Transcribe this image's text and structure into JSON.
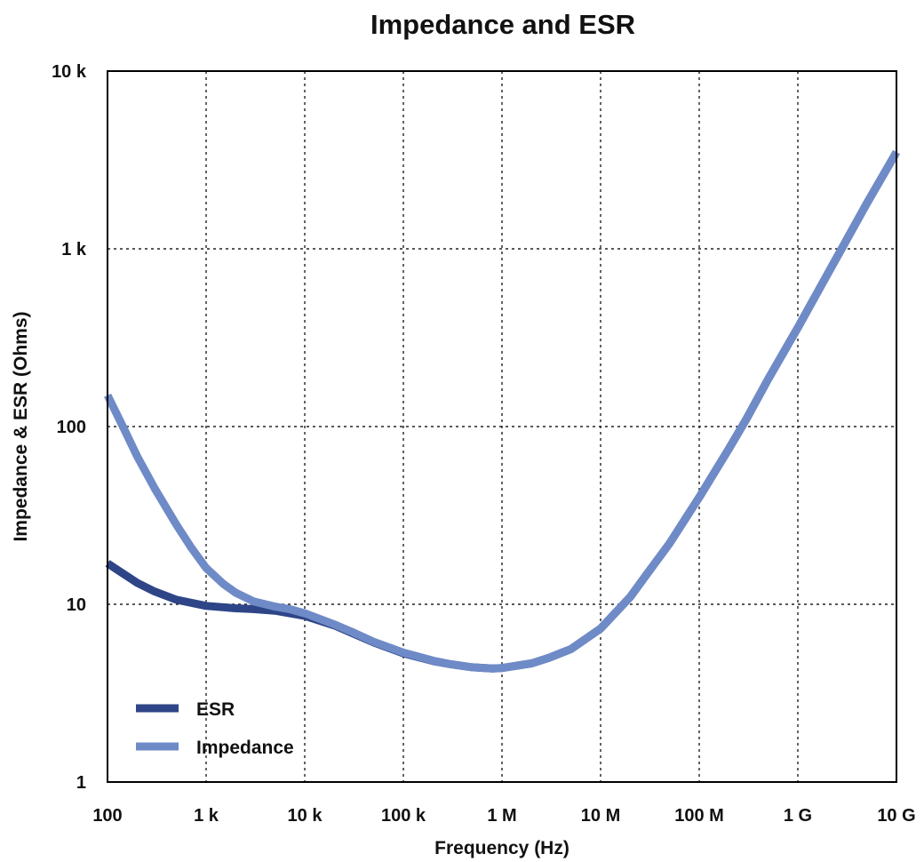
{
  "chart_data": {
    "type": "line",
    "title": "Impedance and ESR",
    "xlabel": "Frequency (Hz)",
    "ylabel": "Impedance & ESR (Ohms)",
    "xscale": "log",
    "yscale": "log",
    "xlim": [
      100,
      10000000000
    ],
    "ylim": [
      1,
      10000
    ],
    "grid": true,
    "legend_position": "bottom-left",
    "x_ticks": [
      {
        "value": 100,
        "label": "100"
      },
      {
        "value": 1000,
        "label": "1 k"
      },
      {
        "value": 10000,
        "label": "10 k"
      },
      {
        "value": 100000,
        "label": "100 k"
      },
      {
        "value": 1000000,
        "label": "1 M"
      },
      {
        "value": 10000000,
        "label": "10 M"
      },
      {
        "value": 100000000,
        "label": "100 M"
      },
      {
        "value": 1000000000,
        "label": "1 G"
      },
      {
        "value": 10000000000,
        "label": "10 G"
      }
    ],
    "y_ticks": [
      {
        "value": 1,
        "label": "1"
      },
      {
        "value": 10,
        "label": "10"
      },
      {
        "value": 100,
        "label": "100"
      },
      {
        "value": 1000,
        "label": "1 k"
      },
      {
        "value": 10000,
        "label": "10 k"
      }
    ],
    "series": [
      {
        "name": "ESR",
        "color": "#2e4587",
        "points": [
          [
            100,
            17
          ],
          [
            200,
            13.2
          ],
          [
            300,
            11.8
          ],
          [
            500,
            10.6
          ],
          [
            1000,
            9.8
          ],
          [
            2000,
            9.5
          ],
          [
            3000,
            9.4
          ],
          [
            5000,
            9.2
          ],
          [
            10000,
            8.6
          ],
          [
            20000,
            7.6
          ],
          [
            30000,
            6.9
          ],
          [
            50000,
            6.1
          ],
          [
            100000,
            5.3
          ],
          [
            200000,
            4.8
          ],
          [
            300000,
            4.6
          ],
          [
            500000,
            4.42
          ],
          [
            800000,
            4.35
          ],
          [
            1000000,
            4.38
          ],
          [
            2000000,
            4.65
          ],
          [
            3000000,
            5.0
          ],
          [
            5000000,
            5.6
          ],
          [
            10000000,
            7.3
          ],
          [
            20000000,
            11
          ],
          [
            30000000,
            15
          ],
          [
            50000000,
            22
          ],
          [
            100000000,
            40
          ],
          [
            200000000,
            75
          ],
          [
            300000000,
            110
          ],
          [
            500000000,
            185
          ],
          [
            1000000000,
            360
          ],
          [
            2000000000,
            720
          ],
          [
            3000000000,
            1080
          ],
          [
            5000000000,
            1800
          ],
          [
            10000000000,
            3500
          ]
        ]
      },
      {
        "name": "Impedance",
        "color": "#6f8bc7",
        "points": [
          [
            100,
            150
          ],
          [
            150,
            95
          ],
          [
            200,
            68
          ],
          [
            300,
            45
          ],
          [
            500,
            28
          ],
          [
            700,
            21
          ],
          [
            1000,
            16
          ],
          [
            1500,
            13
          ],
          [
            2000,
            11.6
          ],
          [
            3000,
            10.4
          ],
          [
            5000,
            9.7
          ],
          [
            7000,
            9.4
          ],
          [
            10000,
            8.9
          ],
          [
            20000,
            7.7
          ],
          [
            30000,
            7.0
          ],
          [
            50000,
            6.15
          ],
          [
            100000,
            5.35
          ],
          [
            200000,
            4.82
          ],
          [
            300000,
            4.6
          ],
          [
            500000,
            4.42
          ],
          [
            800000,
            4.35
          ],
          [
            1000000,
            4.38
          ],
          [
            2000000,
            4.65
          ],
          [
            3000000,
            5.0
          ],
          [
            5000000,
            5.6
          ],
          [
            10000000,
            7.3
          ],
          [
            20000000,
            11
          ],
          [
            30000000,
            15
          ],
          [
            50000000,
            22
          ],
          [
            100000000,
            40
          ],
          [
            200000000,
            75
          ],
          [
            300000000,
            110
          ],
          [
            500000000,
            185
          ],
          [
            1000000000,
            360
          ],
          [
            2000000000,
            720
          ],
          [
            3000000000,
            1080
          ],
          [
            5000000000,
            1800
          ],
          [
            10000000000,
            3500
          ]
        ]
      }
    ]
  }
}
